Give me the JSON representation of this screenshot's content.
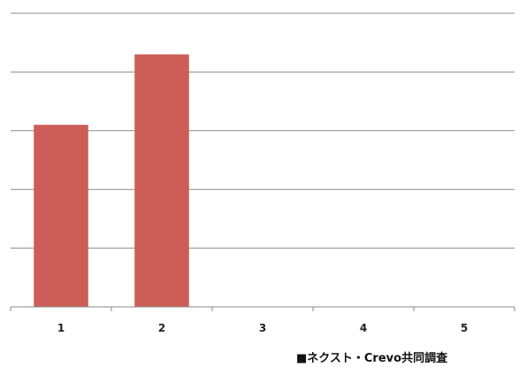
{
  "chart_data": {
    "type": "bar",
    "categories": [
      "1",
      "2",
      "3",
      "4",
      "5"
    ],
    "values": [
      3.1,
      4.3,
      0,
      0,
      0
    ],
    "ylim": [
      0,
      5
    ],
    "grid": true,
    "legend": "none",
    "title": "",
    "xlabel": "",
    "ylabel": ""
  },
  "colors": {
    "bar": "#cd5d57",
    "grid": "#8a8a8a",
    "axis": "#8a8a8a"
  },
  "source_note": "■ネクスト・Crevo共同調査"
}
